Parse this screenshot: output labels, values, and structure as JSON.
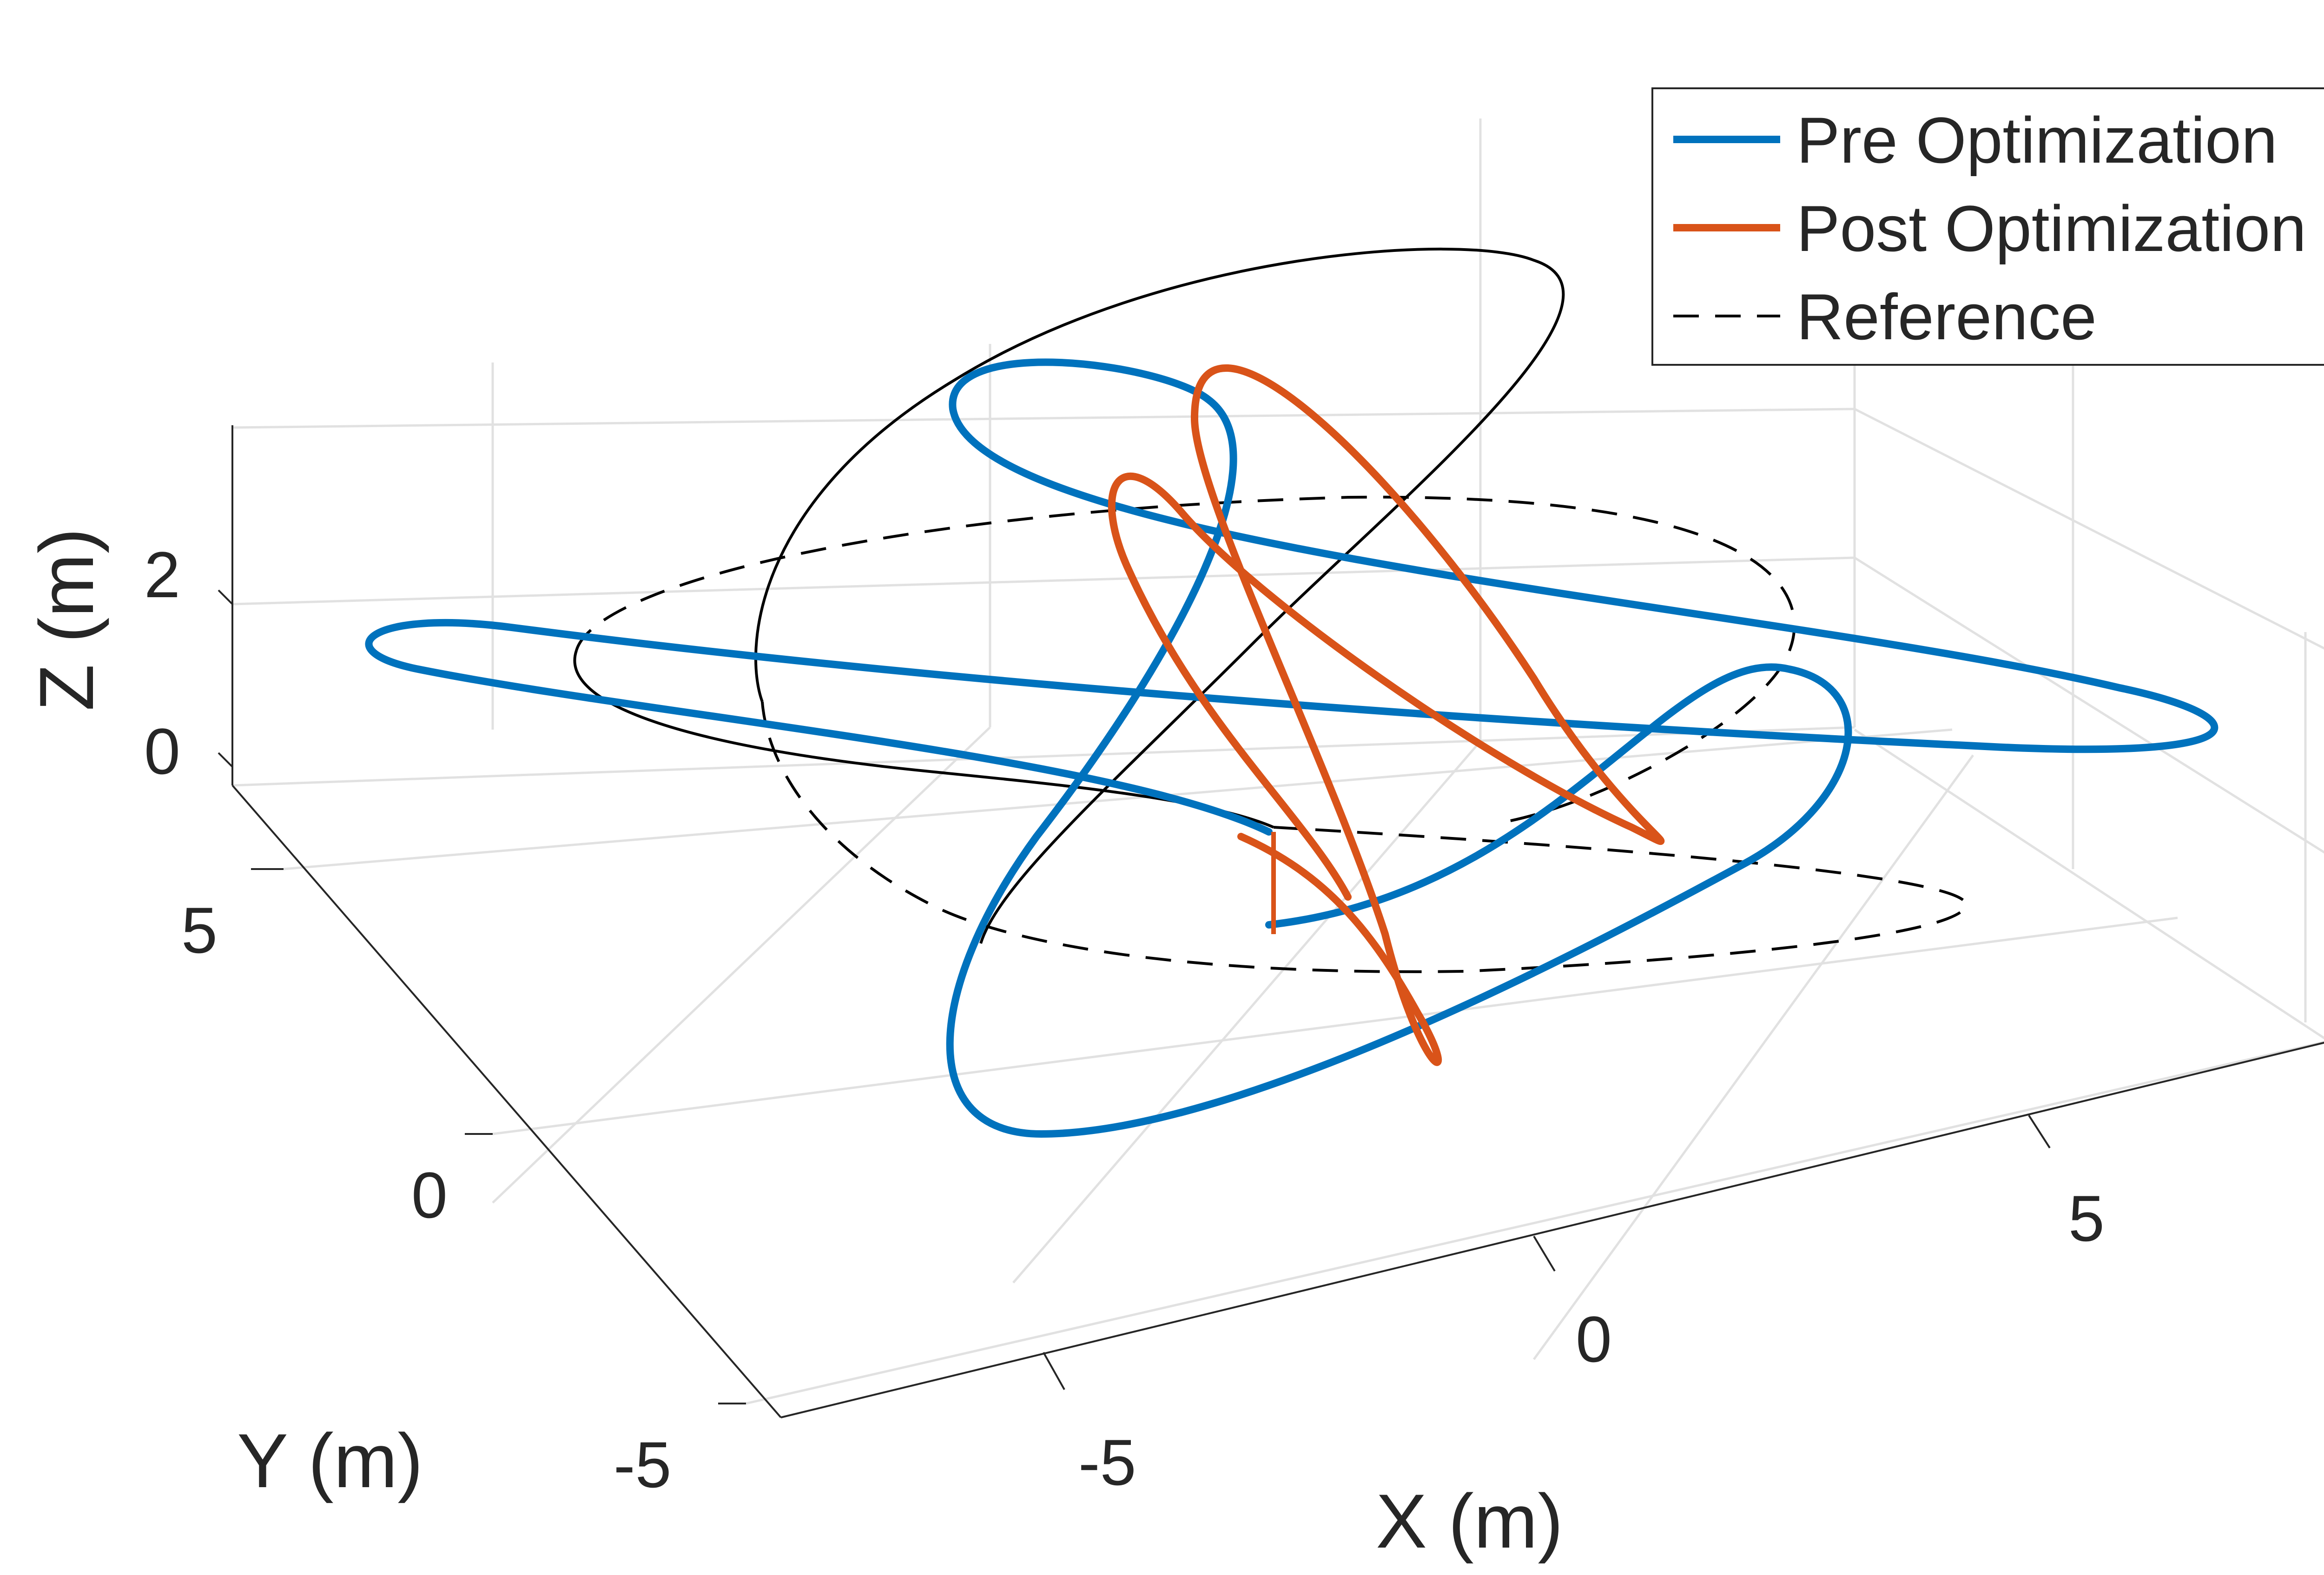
{
  "chart_data": {
    "type": "line",
    "projection": "3d",
    "xlabel": "X (m)",
    "ylabel": "Y (m)",
    "zlabel": "Z (m)",
    "xlim": [
      -9,
      9
    ],
    "ylim": [
      -7,
      9
    ],
    "zlim": [
      0,
      3.5
    ],
    "xticks": [
      "-5",
      "0",
      "5"
    ],
    "yticks": [
      "-5",
      "0",
      "5"
    ],
    "zticks": [
      "0",
      "2"
    ],
    "grid": true,
    "legend_position": "top-right",
    "legend": [
      "Pre Optimization",
      "Post Optimization",
      "Reference"
    ],
    "colors": {
      "pre": "#0072BD",
      "post": "#D95319",
      "reference": "#000000"
    },
    "series": [
      {
        "name": "Pre Optimization",
        "style": "solid",
        "color": "#0072BD"
      },
      {
        "name": "Post Optimization",
        "style": "solid",
        "color": "#D95319"
      },
      {
        "name": "Reference",
        "style": "dashed",
        "color": "#000000"
      }
    ]
  }
}
